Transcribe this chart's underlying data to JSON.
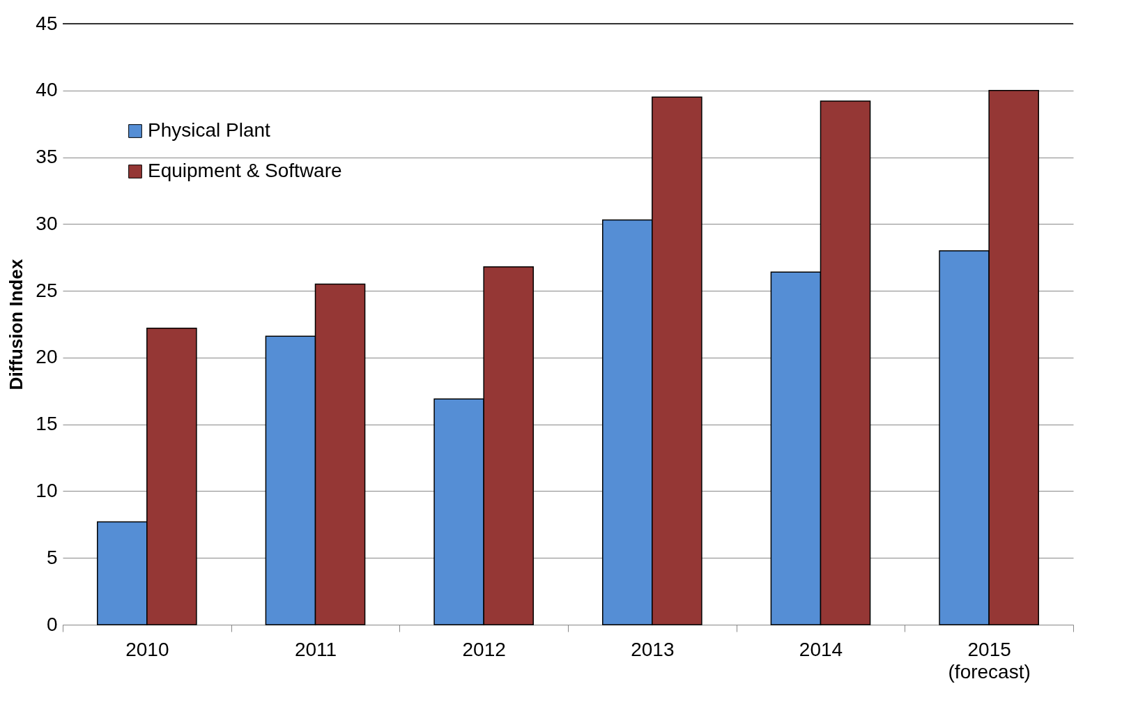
{
  "chart_data": {
    "type": "bar",
    "ylabel": "Diffusion Index",
    "categories": [
      "2010",
      "2011",
      "2012",
      "2013",
      "2014",
      "2015\n(forecast)"
    ],
    "series": [
      {
        "name": "Physical Plant",
        "color": "#558ed5",
        "values": [
          7.7,
          21.6,
          16.9,
          30.3,
          26.4,
          28.0
        ]
      },
      {
        "name": "Equipment & Software",
        "color": "#953735",
        "values": [
          22.2,
          25.5,
          26.8,
          39.5,
          39.2,
          40.0
        ]
      }
    ],
    "ylim": [
      0,
      45
    ],
    "yticks": [
      0,
      5,
      10,
      15,
      20,
      25,
      30,
      35,
      40,
      45
    ],
    "grid": "y",
    "legend": "top left"
  }
}
